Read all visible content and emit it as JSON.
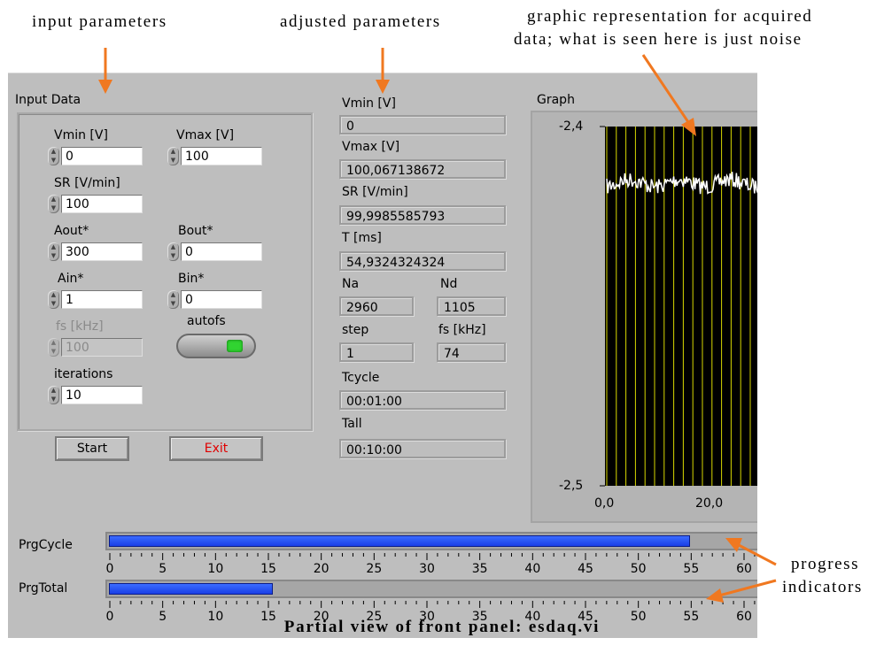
{
  "annotations": {
    "input_parameters": "input parameters",
    "adjusted_parameters": "adjusted parameters",
    "graphic_line1": "graphic representation for acquired",
    "graphic_line2": "data; what is seen here is just noise",
    "progress_line1": "progress",
    "progress_line2": "indicators",
    "caption": "Partial view of front panel: esdaq.vi"
  },
  "input_data": {
    "title": "Input Data",
    "vmin": {
      "label": "Vmin [V]",
      "value": "0"
    },
    "vmax": {
      "label": "Vmax [V]",
      "value": "100"
    },
    "sr": {
      "label": "SR [V/min]",
      "value": "100"
    },
    "aout": {
      "label": "Aout*",
      "value": "300"
    },
    "bout": {
      "label": "Bout*",
      "value": "0"
    },
    "ain": {
      "label": "Ain*",
      "value": "1"
    },
    "bin": {
      "label": "Bin*",
      "value": "0"
    },
    "fs": {
      "label": "fs [kHz]",
      "value": "100"
    },
    "autofs": {
      "label": "autofs",
      "state": "on"
    },
    "iterations": {
      "label": "iterations",
      "value": "10"
    }
  },
  "buttons": {
    "start": "Start",
    "exit": "Exit"
  },
  "adjusted": {
    "vmin": {
      "label": "Vmin [V]",
      "value": "0"
    },
    "vmax": {
      "label": "Vmax [V]",
      "value": "100,067138672"
    },
    "sr": {
      "label": "SR [V/min]",
      "value": "99,9985585793"
    },
    "t": {
      "label": "T [ms]",
      "value": "54,9324324324"
    },
    "na": {
      "label": "Na",
      "value": "2960"
    },
    "nd": {
      "label": "Nd",
      "value": "1105"
    },
    "step": {
      "label": "step",
      "value": "1"
    },
    "fs": {
      "label": "fs [kHz]",
      "value": "74"
    },
    "tcycle": {
      "label": "Tcycle",
      "value": "00:01:00"
    },
    "tall": {
      "label": "Tall",
      "value": "00:10:00"
    }
  },
  "graph": {
    "title": "Graph",
    "y_top": "-2,4",
    "y_bottom": "-2,5",
    "x_labels": [
      "0,0",
      "20,0"
    ],
    "colors": {
      "plot_bg": "#000000",
      "grid": "#d8d800",
      "trace": "#ffffff"
    }
  },
  "progress": {
    "cycle": {
      "label": "PrgCycle",
      "value": 55
    },
    "total": {
      "label": "PrgTotal",
      "value": 15.5
    },
    "scale_labels": [
      "0",
      "5",
      "10",
      "15",
      "20",
      "25",
      "30",
      "35",
      "40",
      "45",
      "50",
      "55",
      "60"
    ],
    "color": "#1a3fe6"
  },
  "colors": {
    "accent": "#f07820",
    "panel_bg": "#bebebe",
    "exit_text": "#e00000"
  }
}
